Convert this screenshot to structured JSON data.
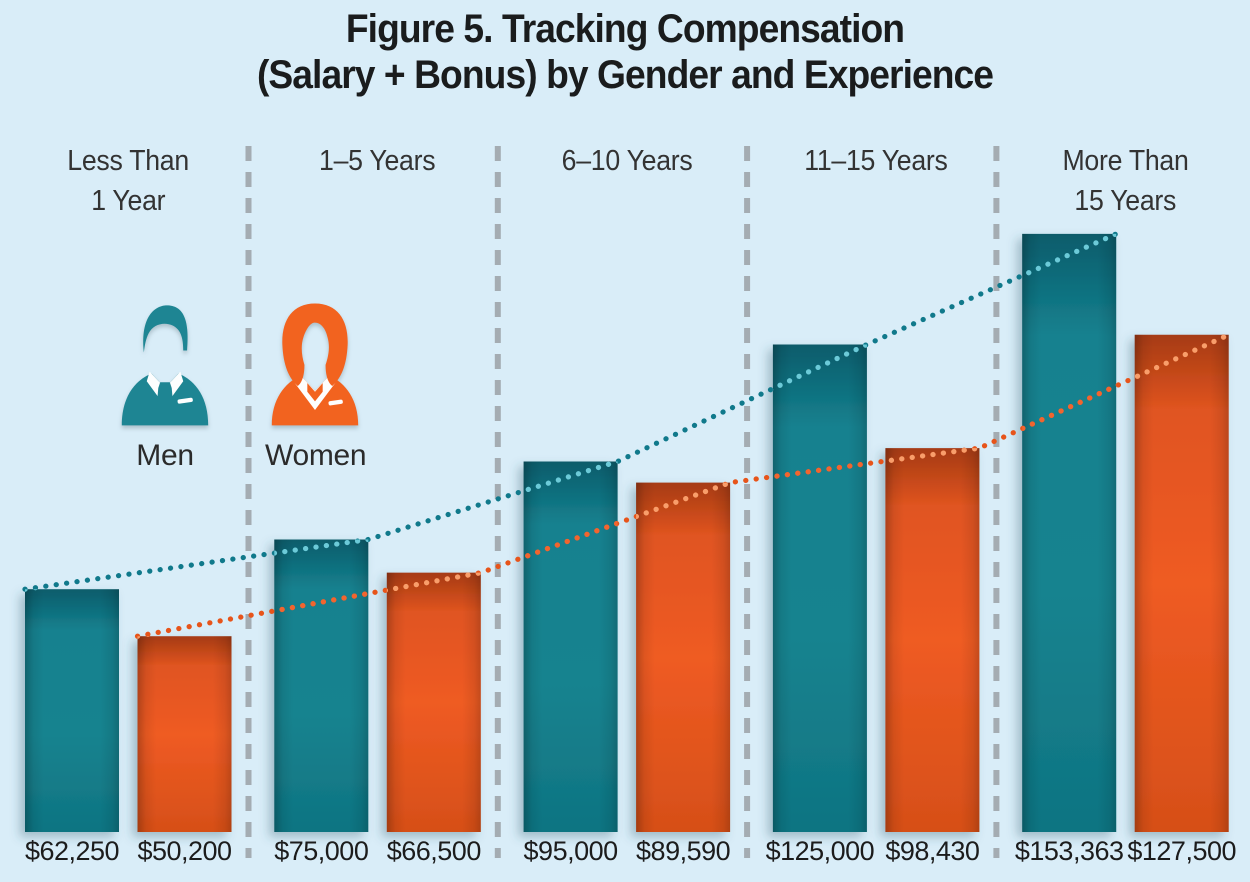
{
  "figure": {
    "title_line1": "Figure 5. Tracking Compensation",
    "title_line2": "(Salary + Bonus) by Gender and Experience"
  },
  "legend": {
    "men": "Men",
    "women": "Women"
  },
  "chart_data": {
    "type": "bar",
    "title": "Figure 5. Tracking Compensation (Salary + Bonus) by Gender and Experience",
    "categories": [
      "Less Than\n1 Year",
      "1–5 Years",
      "6–10 Years",
      "11–15 Years",
      "More Than\n15 Years"
    ],
    "series": [
      {
        "name": "Men",
        "color": "#15818F",
        "values": [
          62250,
          75000,
          95000,
          125000,
          153363
        ],
        "value_labels": [
          "$62,250",
          "$75,000",
          "$95,000",
          "$125,000",
          "$153,363"
        ]
      },
      {
        "name": "Women",
        "color": "#EF5B23",
        "values": [
          50200,
          66500,
          89590,
          98430,
          127500
        ],
        "value_labels": [
          "$50,200",
          "$66,500",
          "$89,590",
          "$98,430",
          "$127,500"
        ]
      }
    ],
    "ylim": [
      0,
      160000
    ],
    "xlabel": "",
    "ylabel": "",
    "grid": false,
    "value_labels_position": "below-bars",
    "trend_lines": [
      {
        "series": "Men",
        "style": "dotted",
        "color": "#10798B"
      },
      {
        "series": "Women",
        "style": "dotted",
        "color": "#E7541A"
      }
    ],
    "legend_position": "upper-left-inside"
  },
  "colors": {
    "background": "#D9EDF8",
    "men_bar": "#15818F",
    "men_bar_dark": "#095C6B",
    "men_bar_bottom": "#0F7482",
    "women_bar": "#EF5B23",
    "women_bar_dark": "#A63B12",
    "women_bar_bottom": "#D64F18",
    "men_line": "#10798B",
    "men_line_on_bar": "#6CCAD8",
    "women_line": "#E7541A",
    "women_line_on_teal": "#F2652F",
    "women_line_on_bar": "#F89E6B",
    "divider": "#A4ACB2",
    "title_text": "#1A1C1D",
    "label_text": "#333333",
    "value_text": "#1C1C1C",
    "man_icon": "#1E8593",
    "woman_icon": "#F2631F"
  }
}
